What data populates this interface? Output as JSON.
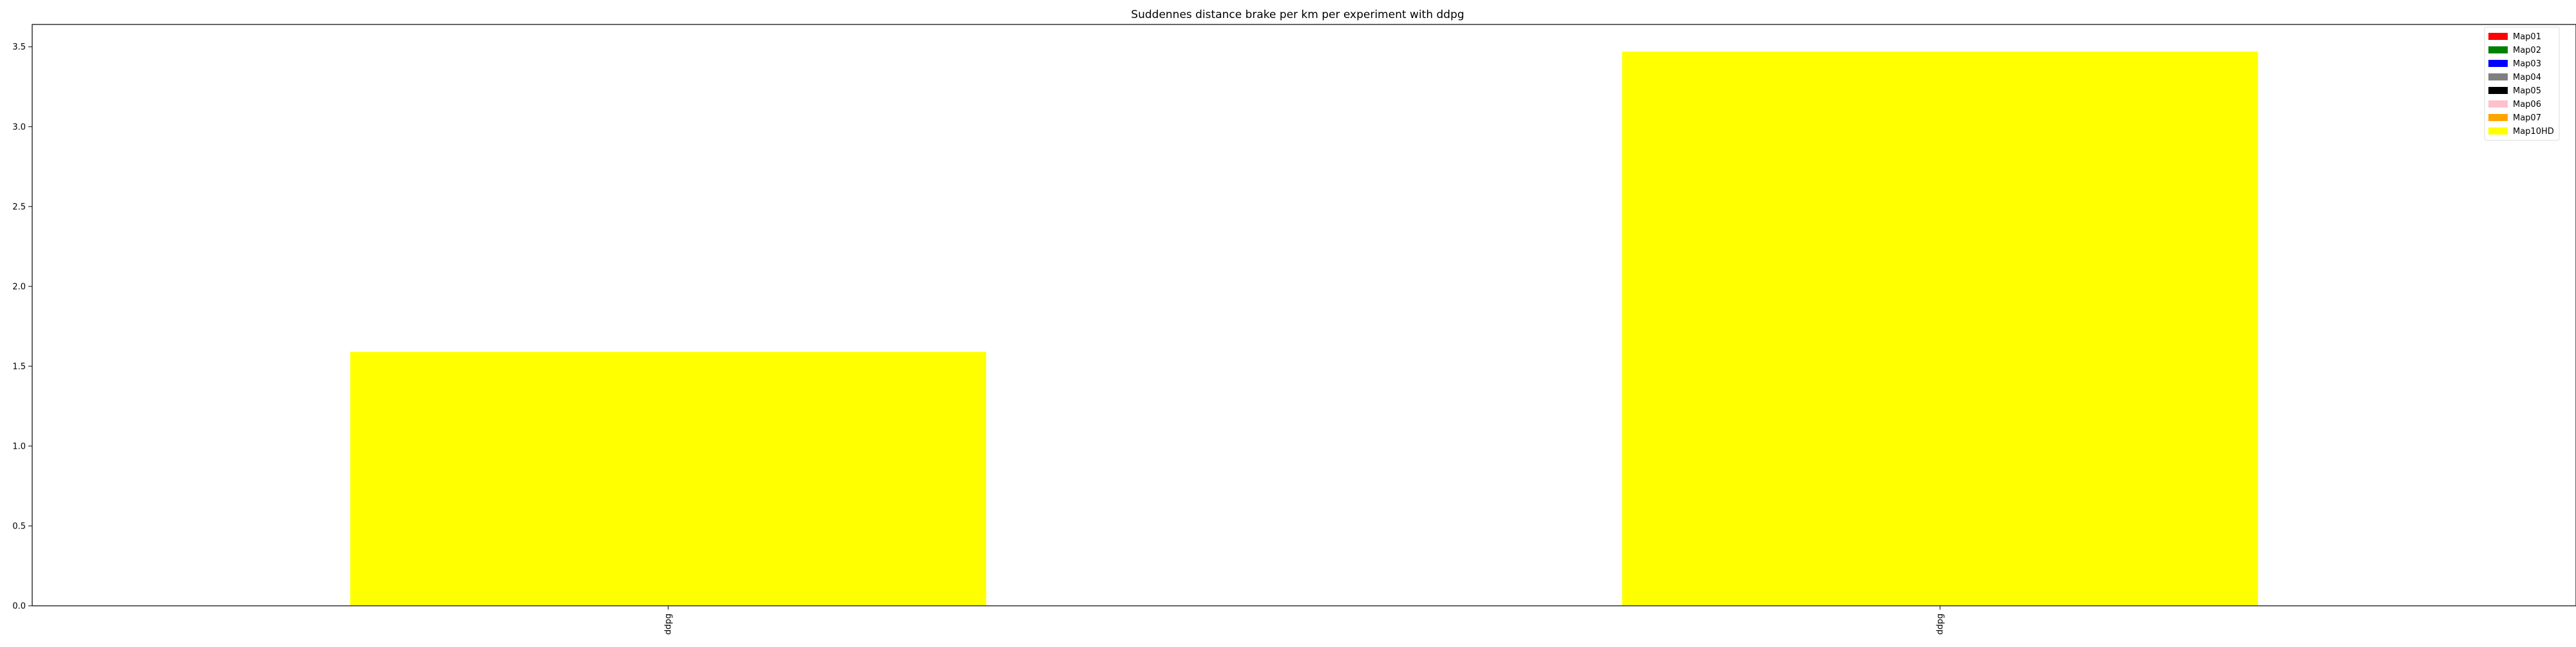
{
  "chart_data": {
    "type": "bar",
    "title": "Suddennes distance brake per km per experiment with ddpg",
    "xlabel": "",
    "ylabel": "",
    "categories": [
      "ddpg",
      "ddpg"
    ],
    "series": [
      {
        "name": "Map01",
        "color": "#ff0000",
        "values": [
          0,
          0
        ]
      },
      {
        "name": "Map02",
        "color": "#008000",
        "values": [
          0,
          0
        ]
      },
      {
        "name": "Map03",
        "color": "#0000ff",
        "values": [
          0,
          0
        ]
      },
      {
        "name": "Map04",
        "color": "#808080",
        "values": [
          0,
          0
        ]
      },
      {
        "name": "Map05",
        "color": "#000000",
        "values": [
          0,
          0
        ]
      },
      {
        "name": "Map06",
        "color": "#ffc0cb",
        "values": [
          0,
          0
        ]
      },
      {
        "name": "Map07",
        "color": "#ffa500",
        "values": [
          0,
          0
        ]
      },
      {
        "name": "Map10HD",
        "color": "#ffff00",
        "values": [
          1.59,
          3.47
        ]
      }
    ],
    "ylim": [
      0,
      3.64
    ],
    "yticks": [
      "0.0",
      "0.5",
      "1.0",
      "1.5",
      "2.0",
      "2.5",
      "3.0",
      "3.5"
    ],
    "grid": false,
    "legend_position": "top-right",
    "stacked": true
  }
}
